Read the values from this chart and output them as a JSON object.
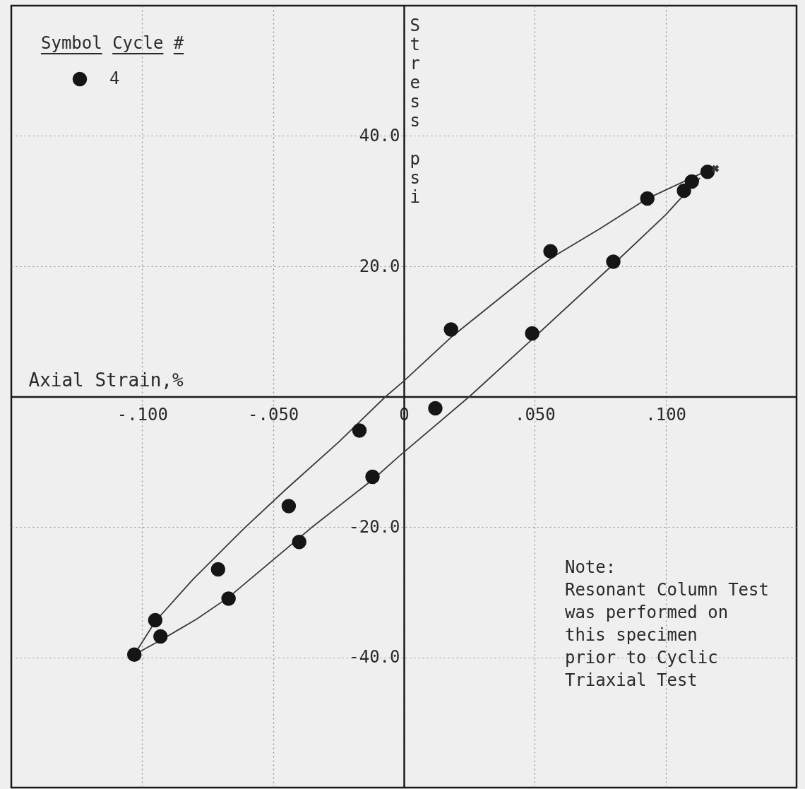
{
  "chart_data": {
    "type": "scatter",
    "xlabel": "Axial Strain,%",
    "ylabel": "Stress psi",
    "legend_title": "Symbol Cycle #",
    "xlim": [
      -0.15,
      0.15
    ],
    "ylim": [
      -60,
      60
    ],
    "xticks": [
      {
        "value": -0.1,
        "label": "-.100"
      },
      {
        "value": -0.05,
        "label": "-.050"
      },
      0,
      {
        "value": 0.05,
        "label": ".050"
      },
      {
        "value": 0.1,
        "label": ".100"
      }
    ],
    "yticks": [
      {
        "value": -40,
        "label": "-40.0"
      },
      {
        "value": -20,
        "label": "-20.0"
      },
      {
        "value": 20,
        "label": "20.0"
      },
      {
        "value": 40,
        "label": "40.0"
      }
    ],
    "grid": true,
    "legend": "top left",
    "annotations": [
      "Note:\nResonant Column Test\nwas performed on\nthis specimen\nprior to Cyclic\nTriaxial Test"
    ],
    "series": [
      {
        "name": "4",
        "marker": "circle",
        "color": "#151515",
        "x": [
          0.116,
          0.11,
          0.107,
          0.093,
          0.056,
          0.08,
          0.018,
          0.049,
          0.012,
          -0.017,
          -0.012,
          -0.044,
          -0.04,
          -0.071,
          -0.067,
          -0.095,
          -0.093,
          -0.103
        ],
        "values": [
          34.5,
          33.0,
          31.6,
          30.4,
          22.3,
          20.7,
          10.3,
          9.7,
          -1.8,
          -5.2,
          -12.3,
          -16.8,
          -22.3,
          -26.5,
          -31.0,
          -34.3,
          -36.8,
          -39.6
        ]
      },
      {
        "type": "line",
        "marker": "none",
        "color": "#3a3a3a",
        "x": [
          -0.103,
          -0.095,
          -0.0805,
          -0.061,
          -0.045,
          -0.025,
          -0.007,
          0,
          0.018,
          0.049,
          0.058,
          0.075,
          0.093,
          0.116,
          0.119
        ],
        "values": [
          -39.6,
          -34.5,
          -28.0,
          -20.2,
          -14.2,
          -7.0,
          0,
          2.4,
          9.1,
          19.1,
          21.7,
          25.8,
          30.4,
          34.7,
          35.0
        ]
      },
      {
        "type": "line",
        "marker": "none",
        "color": "#3a3a3a",
        "x": [
          -0.103,
          -0.093,
          -0.079,
          -0.067,
          -0.035,
          -0.0115,
          -0.002,
          0.025,
          0.049,
          0.08,
          0.1,
          0.107,
          0.113
        ],
        "values": [
          -39.6,
          -37.4,
          -34.1,
          -30.8,
          -20.0,
          -12.6,
          -9.2,
          0,
          8.8,
          20.3,
          27.9,
          31.0,
          33.5
        ]
      },
      {
        "marker": "cross",
        "color": "#3a3a3a",
        "x": [
          0.119
        ],
        "values": [
          35.0
        ]
      }
    ]
  }
}
